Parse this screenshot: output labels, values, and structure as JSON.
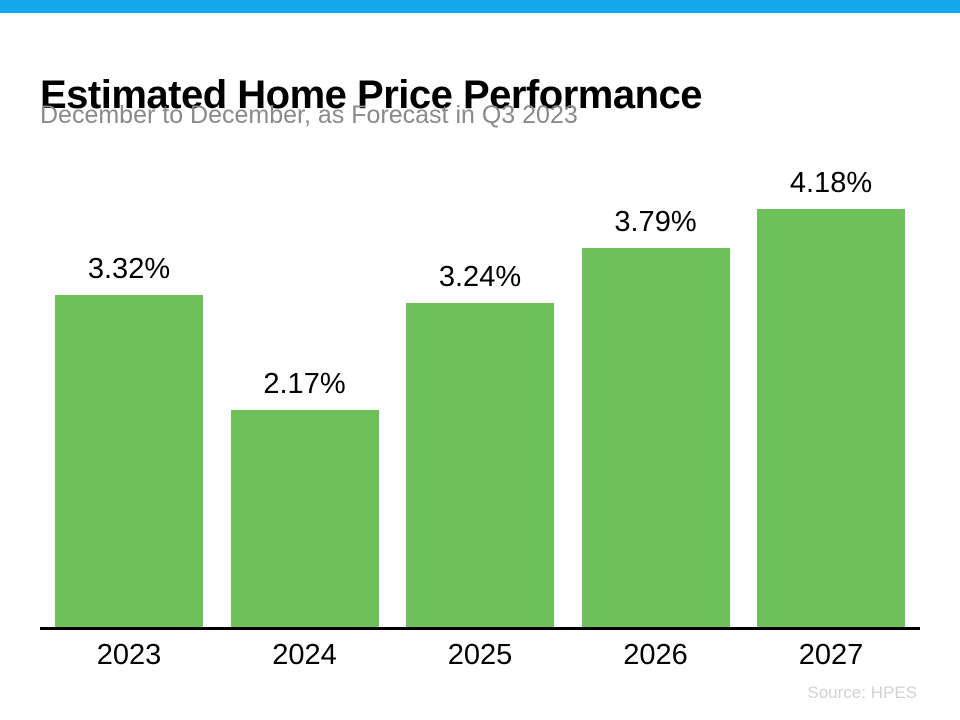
{
  "page": {
    "topbar_color": "#17a8ec",
    "background_color": "#ffffff"
  },
  "header": {
    "title": "Estimated Home Price Performance",
    "subtitle": "December to December, as Forecast in Q3 2023"
  },
  "chart_data": {
    "type": "bar",
    "title": "Estimated Home Price Performance",
    "subtitle": "December to December, as Forecast in Q3 2023",
    "categories": [
      "2023",
      "2024",
      "2025",
      "2026",
      "2027"
    ],
    "values": [
      3.32,
      2.17,
      3.24,
      3.79,
      4.18
    ],
    "value_labels": [
      "3.32%",
      "2.17%",
      "3.24%",
      "3.79%",
      "4.18%"
    ],
    "bar_color": "#6ec15a",
    "axis_color": "#000000",
    "label_color": "#000000",
    "xlabel": "",
    "ylabel": "",
    "ylim": [
      0,
      4.5
    ],
    "grid": false,
    "legend_position": "none"
  },
  "footer": {
    "source": "Source: HPES"
  }
}
